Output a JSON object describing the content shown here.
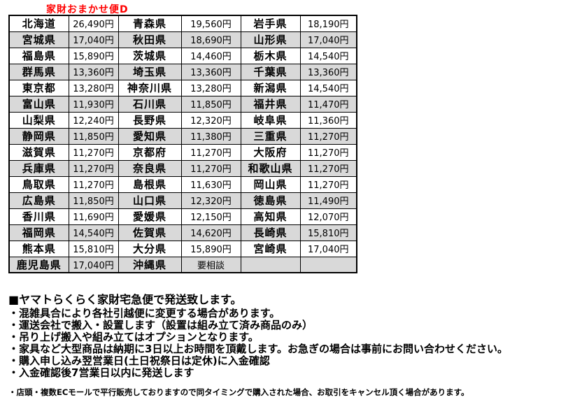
{
  "title": "家財おまかせ便D",
  "colors": {
    "title_red": "#ff0000",
    "row_alt_gray": "#d9d9d9",
    "border_black": "#000000",
    "background": "#ffffff"
  },
  "table": {
    "columns": [
      "prefecture",
      "price",
      "prefecture",
      "price",
      "prefecture",
      "price"
    ],
    "rows": [
      [
        "北海道",
        "26,490円",
        "青森県",
        "19,560円",
        "岩手県",
        "18,190円"
      ],
      [
        "宮城県",
        "17,040円",
        "秋田県",
        "18,690円",
        "山形県",
        "17,040円"
      ],
      [
        "福島県",
        "15,890円",
        "茨城県",
        "14,460円",
        "栃木県",
        "14,540円"
      ],
      [
        "群馬県",
        "13,360円",
        "埼玉県",
        "13,360円",
        "千葉県",
        "13,360円"
      ],
      [
        "東京都",
        "13,280円",
        "神奈川県",
        "13,280円",
        "新潟県",
        "14,540円"
      ],
      [
        "富山県",
        "11,930円",
        "石川県",
        "11,850円",
        "福井県",
        "11,470円"
      ],
      [
        "山梨県",
        "12,240円",
        "長野県",
        "12,320円",
        "岐阜県",
        "11,360円"
      ],
      [
        "静岡県",
        "11,850円",
        "愛知県",
        "11,380円",
        "三重県",
        "11,270円"
      ],
      [
        "滋賀県",
        "11,270円",
        "京都府",
        "11,270円",
        "大阪府",
        "11,270円"
      ],
      [
        "兵庫県",
        "11,270円",
        "奈良県",
        "11,270円",
        "和歌山県",
        "11,270円"
      ],
      [
        "鳥取県",
        "11,270円",
        "島根県",
        "11,630円",
        "岡山県",
        "11,270円"
      ],
      [
        "広島県",
        "11,850円",
        "山口県",
        "12,320円",
        "徳島県",
        "11,490円"
      ],
      [
        "香川県",
        "11,690円",
        "愛媛県",
        "12,150円",
        "高知県",
        "12,070円"
      ],
      [
        "福岡県",
        "14,540円",
        "佐賀県",
        "14,620円",
        "長崎県",
        "15,810円"
      ],
      [
        "熊本県",
        "15,810円",
        "大分県",
        "15,890円",
        "宮崎県",
        "17,040円"
      ],
      [
        "鹿児島県",
        "17,040円",
        "沖縄県",
        "要相談",
        "",
        ""
      ]
    ]
  },
  "notes": {
    "heading": "■ヤマトらくらく家財宅急便で発送致します。",
    "bullets": [
      "・混雑具合により各社引越便に変更する場合があります。",
      "・運送会社で搬入・設置します（設置は組み立て済み商品のみ）",
      "・吊り上げ搬入や組み立てはオプションとなります。",
      "・家具など大型商品は納期に3日以上お時間を頂戴します。お急ぎの場合は事前にお問い合わせください。",
      "・購入申し込み翌営業日(土日祝祭日は定休)に入金確認",
      "・入金確認後7営業日以内に発送します"
    ],
    "fine_print": "・店頭・複数ECモールで平行販売しておりますので同タイミングで購入された場合、お取引をキャンセル頂く場合があります。"
  }
}
